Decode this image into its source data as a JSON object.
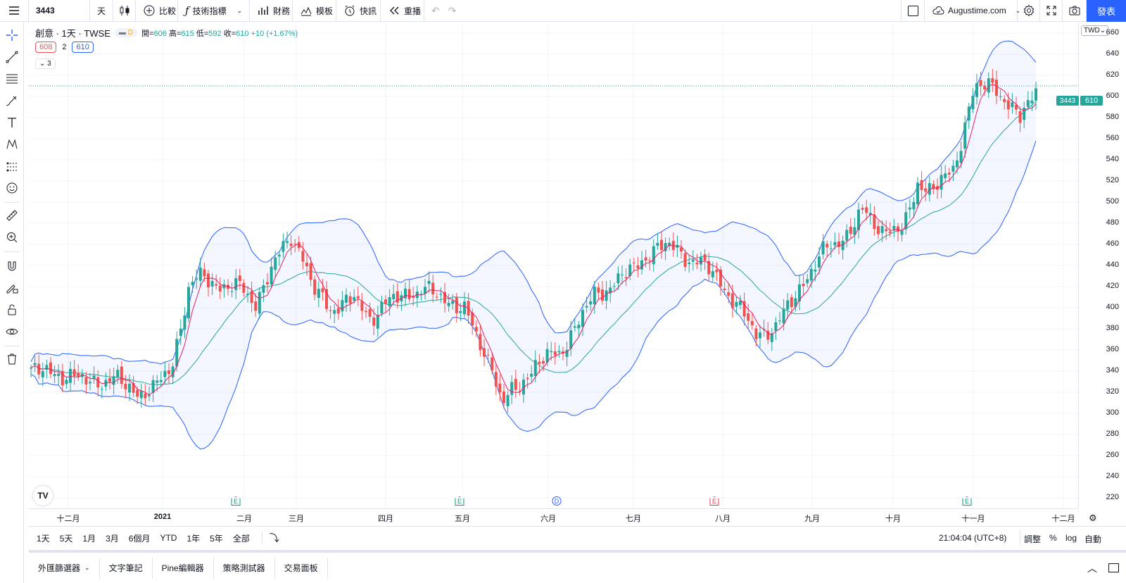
{
  "toolbar": {
    "symbol": "3443",
    "interval": "天",
    "compare": "比較",
    "indicators": "技術指標",
    "financials": "財務",
    "templates": "模板",
    "alerts": "快訊",
    "replay": "重播",
    "layout_name": "Augustime.com",
    "publish": "發表"
  },
  "legend": {
    "name": "創意 · 1天 · TWSE",
    "status": "D",
    "o_label": "開=",
    "o": "606",
    "h_label": "高=",
    "h": "615",
    "l_label": "低=",
    "l": "592",
    "c_label": "收=",
    "c": "610",
    "change": "+10 (+1.67%)",
    "ind_val1": "608",
    "ind_len": "2",
    "ind_val2": "610",
    "collapsed_count": "3"
  },
  "price_axis": {
    "currency": "TWD",
    "ticks": [
      "660",
      "640",
      "620",
      "600",
      "580",
      "560",
      "540",
      "520",
      "500",
      "480",
      "460",
      "440",
      "420",
      "400",
      "380",
      "360",
      "340",
      "320",
      "300",
      "280",
      "260",
      "240",
      "220"
    ],
    "last_price": "610",
    "symbol_badge": "3443"
  },
  "time_axis": {
    "labels": [
      "十二月",
      "2021",
      "二月",
      "三月",
      "四月",
      "五月",
      "六月",
      "七月",
      "八月",
      "九月",
      "十月",
      "十一月",
      "十二月"
    ]
  },
  "events": [
    {
      "type": "e",
      "label": "E"
    },
    {
      "type": "e",
      "label": "E"
    },
    {
      "type": "d",
      "label": "D"
    },
    {
      "type": "f",
      "label": "E"
    },
    {
      "type": "e",
      "label": "E"
    }
  ],
  "ranges": [
    "1天",
    "5天",
    "1月",
    "3月",
    "6個月",
    "YTD",
    "1年",
    "5年",
    "全部"
  ],
  "clock": "21:04:04 (UTC+8)",
  "scale_opts": {
    "adjust": "調整",
    "percent": "%",
    "log": "log",
    "auto": "自動"
  },
  "panels": [
    "外匯篩選器",
    "文字筆記",
    "Pine編輯器",
    "策略測試器",
    "交易面板"
  ],
  "colors": {
    "up": "#26a69a",
    "down": "#ef5350",
    "bb": "#2962ff",
    "basis": "#26a69a",
    "ma": "#e91e63"
  },
  "chart_data": {
    "type": "candlestick",
    "ylim": [
      210,
      670
    ],
    "series_names": [],
    "candles": []
  }
}
